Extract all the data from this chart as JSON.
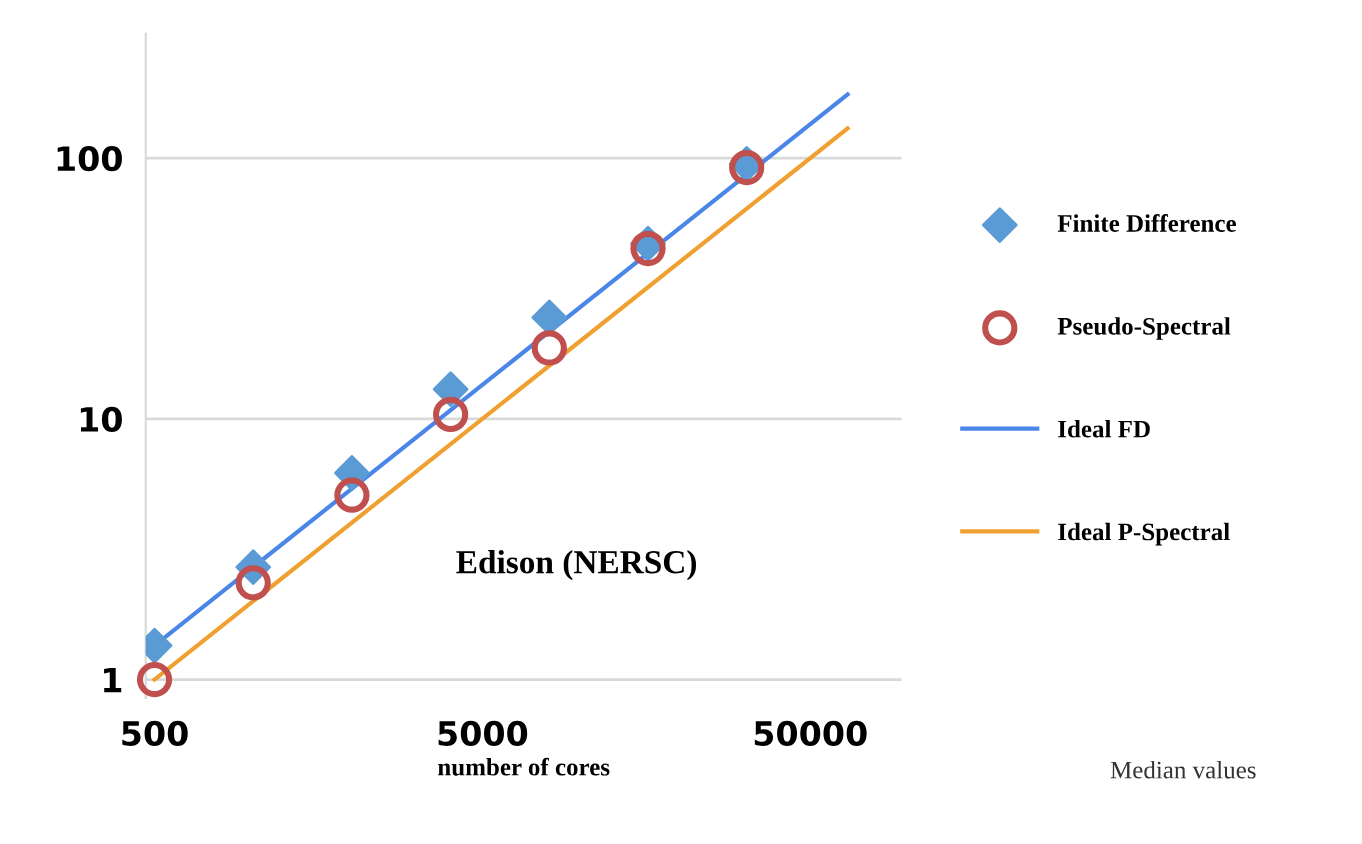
{
  "chart_data": {
    "type": "scatter",
    "xlabel": "number of cores",
    "log": "xy",
    "xlim": [
      470,
      95000
    ],
    "xticks": [
      500,
      5000,
      50000
    ],
    "ylim": [
      0.85,
      300
    ],
    "yticks": [
      1,
      10,
      100
    ],
    "grid": "y",
    "legend": "right",
    "annotations": [
      "Edison (NERSC)",
      "Median values"
    ],
    "series": [
      {
        "name": "Finite Difference",
        "marker": "diamond",
        "color": "#5b9bd5",
        "x": [
          500,
          1000,
          2000,
          4000,
          8000,
          16000,
          32000
        ],
        "values": [
          1.35,
          2.7,
          6.2,
          13,
          24.5,
          47,
          95
        ]
      },
      {
        "name": "Pseudo-Spectral",
        "marker": "circle",
        "color": "#c0504d",
        "x": [
          500,
          1000,
          2000,
          4000,
          8000,
          16000,
          32000
        ],
        "values": [
          1.0,
          2.35,
          5.1,
          10.4,
          18.7,
          45,
          92
        ]
      },
      {
        "name": "Ideal FD",
        "type": "line",
        "marker": "none",
        "color": "#4a86e8",
        "x": [
          500,
          65000
        ],
        "values": [
          1.35,
          175.5
        ]
      },
      {
        "name": "Ideal P-Spectral",
        "type": "line",
        "marker": "none",
        "color": "#f0a030",
        "x": [
          500,
          65000
        ],
        "values": [
          1.0,
          130
        ]
      }
    ]
  }
}
